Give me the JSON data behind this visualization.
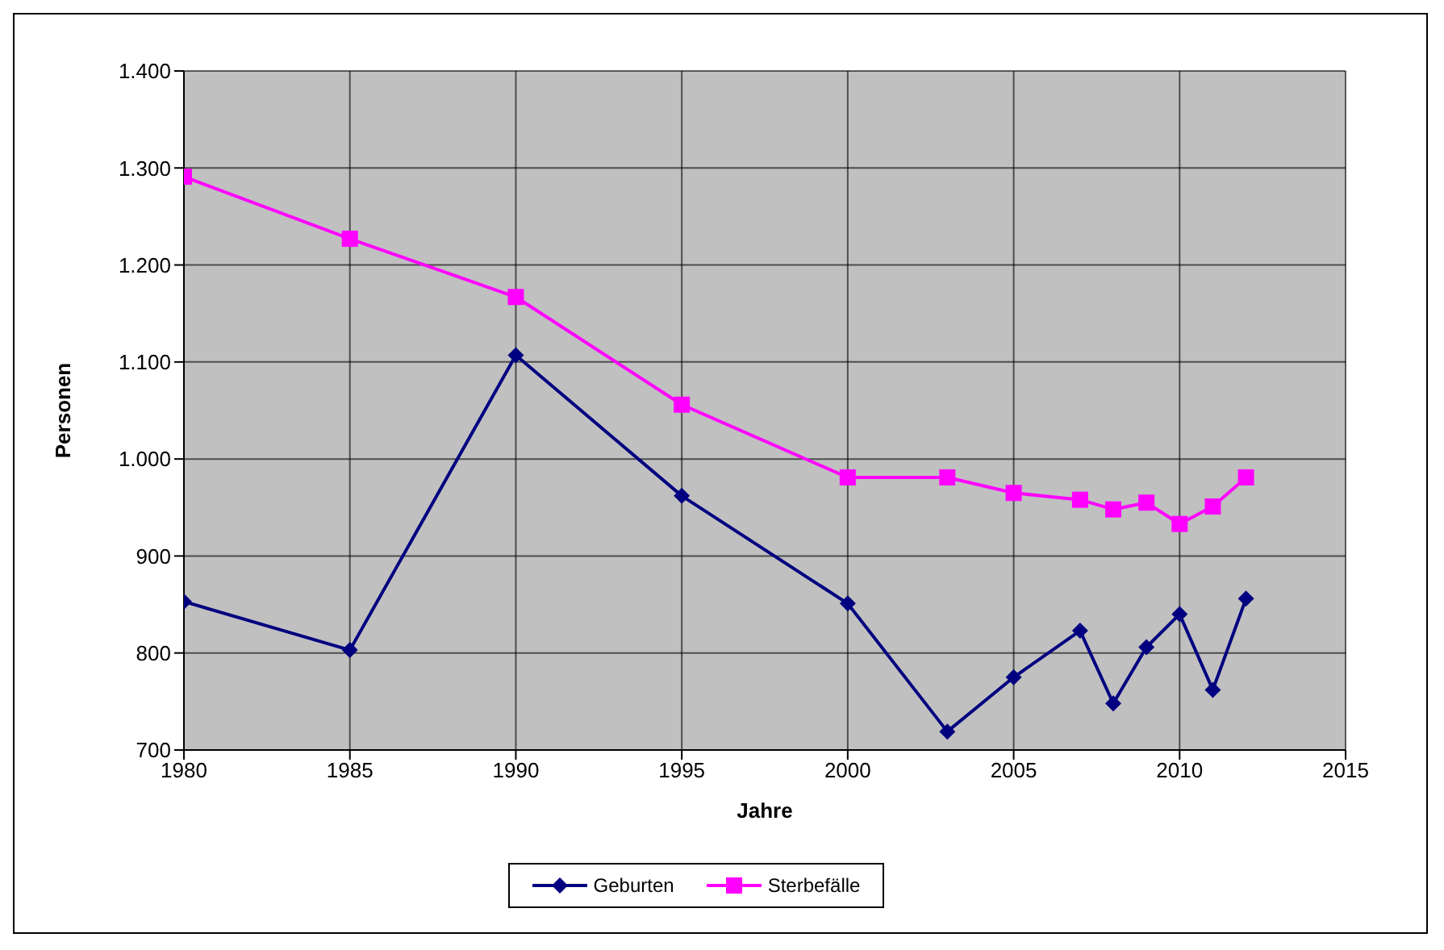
{
  "chart_data": {
    "type": "line",
    "xlabel": "Jahre",
    "ylabel": "Personen",
    "x": [
      1980,
      1985,
      1990,
      1995,
      2000,
      2003,
      2005,
      2007,
      2008,
      2009,
      2010,
      2011,
      2012
    ],
    "series": [
      {
        "name": "Geburten",
        "color": "#000080",
        "marker": "diamond",
        "values": [
          853,
          803,
          1107,
          962,
          851,
          719,
          775,
          823,
          748,
          806,
          840,
          762,
          856
        ]
      },
      {
        "name": "Sterbefälle",
        "color": "#ff00ff",
        "marker": "square",
        "values": [
          1291,
          1227,
          1167,
          1056,
          981,
          981,
          965,
          958,
          948,
          955,
          933,
          951,
          981
        ]
      }
    ],
    "xlim": [
      1980,
      2015
    ],
    "xticks": [
      1980,
      1985,
      1990,
      1995,
      2000,
      2005,
      2010,
      2015
    ],
    "ylim": [
      700,
      1400
    ],
    "yticks": [
      700,
      800,
      900,
      {
        "value": 1000,
        "label": "1.000"
      },
      {
        "value": 1100,
        "label": "1.100"
      },
      {
        "value": 1200,
        "label": "1.200"
      },
      {
        "value": 1300,
        "label": "1.300"
      },
      {
        "value": 1400,
        "label": "1.400"
      }
    ],
    "grid": true,
    "legend": "bottom"
  }
}
